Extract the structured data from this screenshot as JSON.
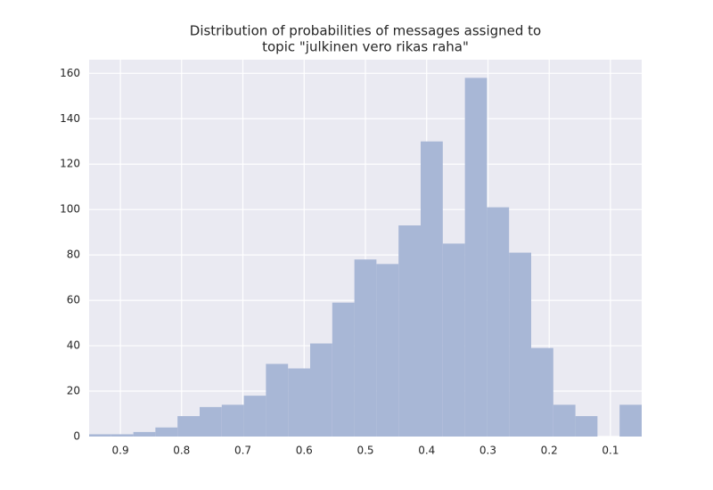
{
  "chart_data": {
    "type": "histogram",
    "title": [
      "Distribution of probabilities of messages assigned to",
      "topic \"julkinen vero rikas raha\""
    ],
    "bins": [
      0.049,
      0.0851,
      0.1212,
      0.1572,
      0.1933,
      0.2294,
      0.2655,
      0.3016,
      0.3376,
      0.3737,
      0.4098,
      0.4459,
      0.482,
      0.518,
      0.5541,
      0.5902,
      0.6263,
      0.6624,
      0.6984,
      0.7345,
      0.7706,
      0.8067,
      0.8428,
      0.8788,
      0.9149,
      0.951
    ],
    "values": [
      14,
      0,
      9,
      14,
      39,
      81,
      101,
      158,
      85,
      130,
      93,
      76,
      78,
      59,
      41,
      30,
      32,
      18,
      14,
      13,
      9,
      4,
      2,
      1,
      1
    ],
    "color": "#a8b7d6",
    "background": "#eaeaf2",
    "xlim": [
      0.951,
      0.049
    ],
    "xticks": [
      0.9,
      0.8,
      0.7,
      0.6,
      0.5,
      0.4,
      0.3,
      0.2,
      0.1
    ],
    "ylim": [
      0,
      166
    ],
    "yticks": [
      0,
      20,
      40,
      60,
      80,
      100,
      120,
      140,
      160
    ],
    "grid": true
  }
}
